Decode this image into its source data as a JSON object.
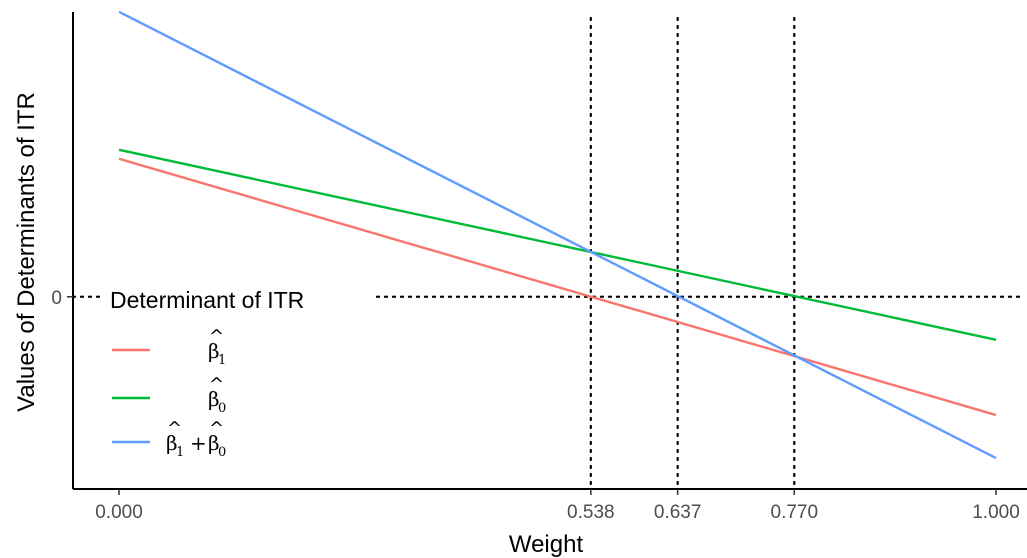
{
  "chart_data": {
    "type": "line",
    "title": "",
    "xlabel": "Weight",
    "ylabel": "Values of Determinants of ITR",
    "xlim": [
      0,
      1
    ],
    "ylim": [
      -1.0,
      1.6
    ],
    "x_ticks": [
      {
        "value": 0.0,
        "label": "0.000"
      },
      {
        "value": 0.538,
        "label": "0.538"
      },
      {
        "value": 0.637,
        "label": "0.637"
      },
      {
        "value": 0.77,
        "label": "0.770"
      },
      {
        "value": 1.0,
        "label": "1.000"
      }
    ],
    "y_ticks": [
      {
        "value": 0,
        "label": "0"
      }
    ],
    "reference_lines": {
      "vertical": [
        0.538,
        0.637,
        0.77
      ],
      "horizontal": [
        0
      ],
      "style": "dotted"
    },
    "grid": false,
    "legend": {
      "title": "Determinant of ITR",
      "placement": "left-lower"
    },
    "series": [
      {
        "key": "beta1",
        "label_main": "β",
        "label_sub": "1",
        "color": "#F8766D",
        "x": [
          0,
          1
        ],
        "y": [
          0.77,
          -0.66
        ]
      },
      {
        "key": "beta0",
        "label_main": "β",
        "label_sub": "0",
        "color": "#00BA38",
        "x": [
          0,
          1
        ],
        "y": [
          0.82,
          -0.24
        ]
      },
      {
        "key": "sum",
        "label_main": "β",
        "label_sub": "1",
        "label_plus": "+",
        "label_main2": "β",
        "label_sub2": "0",
        "color": "#619CFF",
        "x": [
          0,
          1
        ],
        "y": [
          1.59,
          -0.9
        ]
      }
    ]
  }
}
